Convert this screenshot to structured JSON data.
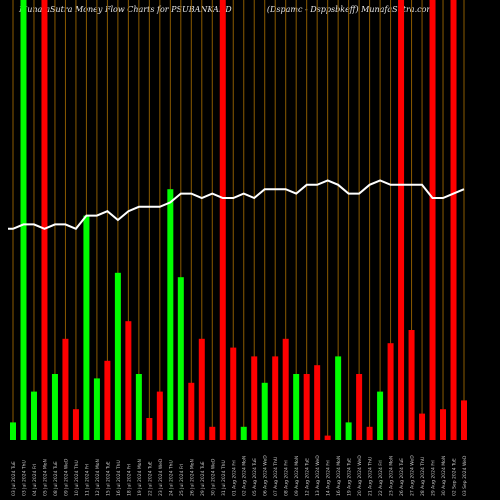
{
  "header": {
    "title_left": "MunafaSutra  Money Flow  Charts for PSUBANKADD",
    "title_right": "(Dspamc -  Dsppsbkeff) MunafaSutra.com"
  },
  "colors": {
    "background": "#000000",
    "gridline": "#8a5a00",
    "up": "#00ff00",
    "down": "#ff0000",
    "line": "#ffffff",
    "axis_text": "#cccccc"
  },
  "chart_data": {
    "type": "bar",
    "title": "MunafaSutra  Money Flow  Charts for PSUBANKADD",
    "xlabel": "",
    "ylabel": "",
    "grid": true,
    "categories": [
      "03 Jul 2024 TuE",
      "03 Jul 2024 ThU",
      "04 Jul 2024 FrI",
      "05 Jul 2024 MoN",
      "08 Jul 2024 TuE",
      "09 Jul 2024 WeD",
      "10 Jul 2024 ThU",
      "11 Jul 2024 FrI",
      "12 Jul 2024 MoN",
      "15 Jul 2024 TuE",
      "16 Jul 2024 ThU",
      "18 Jul 2024 FrI",
      "19 Jul 2024 MoN",
      "22 Jul 2024 TuE",
      "23 Jul 2024 WeD",
      "24 Jul 2024 ThU",
      "25 Jul 2024 FrI",
      "26 Jul 2024 MoN",
      "29 Jul 2024 TuE",
      "30 Jul 2024 WeD",
      "31 Jul 2024 ThU",
      "01 Aug 2024 FrI",
      "02 Aug 2024 MoN",
      "05 Aug 2024 TuE",
      "06 Aug 2024 WeD",
      "07 Aug 2024 ThU",
      "08 Aug 2024 FrI",
      "09 Aug 2024 MoN",
      "12 Aug 2024 TuE",
      "13 Aug 2024 WeD",
      "14 Aug 2024 FrI",
      "16 Aug 2024 MoN",
      "19 Aug 2024 TuE",
      "20 Aug 2024 WeD",
      "21 Aug 2024 ThU",
      "22 Aug 2024 FrI",
      "23 Aug 2024 MoN",
      "26 Aug 2024 TuE",
      "27 Aug 2024 WeD",
      "28 Aug 2024 ThU",
      "29 Aug 2024 FrI",
      "30 Aug 2024 MoN",
      "02 Sep 2024 TuE",
      "03 Sep 2024 WeD"
    ],
    "series": [
      {
        "values": [
          4,
          100,
          11,
          100,
          15,
          23,
          7,
          51,
          14,
          18,
          38,
          27,
          15,
          5,
          11,
          57,
          37,
          13,
          23,
          3,
          100,
          21,
          3,
          19,
          13,
          19,
          23,
          15,
          15,
          17,
          1,
          19,
          4,
          15,
          3,
          11,
          22,
          100,
          25,
          6,
          100,
          7,
          100,
          9
        ],
        "directions": [
          "up",
          "up",
          "up",
          "down",
          "up",
          "down",
          "down",
          "up",
          "up",
          "down",
          "up",
          "down",
          "up",
          "down",
          "down",
          "up",
          "up",
          "down",
          "down",
          "down",
          "down",
          "down",
          "up",
          "down",
          "up",
          "down",
          "down",
          "up",
          "down",
          "down",
          "down",
          "up",
          "up",
          "down",
          "down",
          "up",
          "down",
          "down",
          "down",
          "down",
          "down",
          "down",
          "down",
          "down"
        ]
      }
    ],
    "line_values": [
      48,
      49,
      49,
      48,
      49,
      49,
      48,
      51,
      51,
      52,
      50,
      52,
      53,
      53,
      53,
      54,
      56,
      56,
      55,
      56,
      55,
      55,
      56,
      55,
      57,
      57,
      57,
      56,
      58,
      58,
      59,
      58,
      56,
      56,
      58,
      59,
      58,
      58,
      58,
      58,
      55,
      55,
      56,
      57
    ],
    "ylim": [
      0,
      100
    ]
  }
}
